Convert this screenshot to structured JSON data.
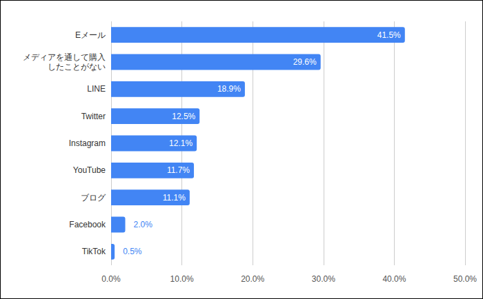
{
  "chart_data": {
    "type": "bar",
    "orientation": "horizontal",
    "categories": [
      "Eメール",
      "メディアを通して購入\nしたことがない",
      "LINE",
      "Twitter",
      "Instagram",
      "YouTube",
      "ブログ",
      "Facebook",
      "TikTok"
    ],
    "values": [
      41.5,
      29.6,
      18.9,
      12.5,
      12.1,
      11.7,
      11.1,
      2.0,
      0.5
    ],
    "value_labels": [
      "41.5%",
      "29.6%",
      "18.9%",
      "12.5%",
      "12.1%",
      "11.7%",
      "11.1%",
      "2.0%",
      "0.5%"
    ],
    "color": "#4285f4",
    "xlim": [
      0,
      50
    ],
    "xticks": [
      {
        "value": 0,
        "label": "0.0%"
      },
      {
        "value": 10,
        "label": "10.0%"
      },
      {
        "value": 20,
        "label": "20.0%"
      },
      {
        "value": 30,
        "label": "30.0%"
      },
      {
        "value": 40,
        "label": "40.0%"
      },
      {
        "value": 50,
        "label": "50.0%"
      }
    ],
    "grid": true,
    "data_labels": true
  }
}
